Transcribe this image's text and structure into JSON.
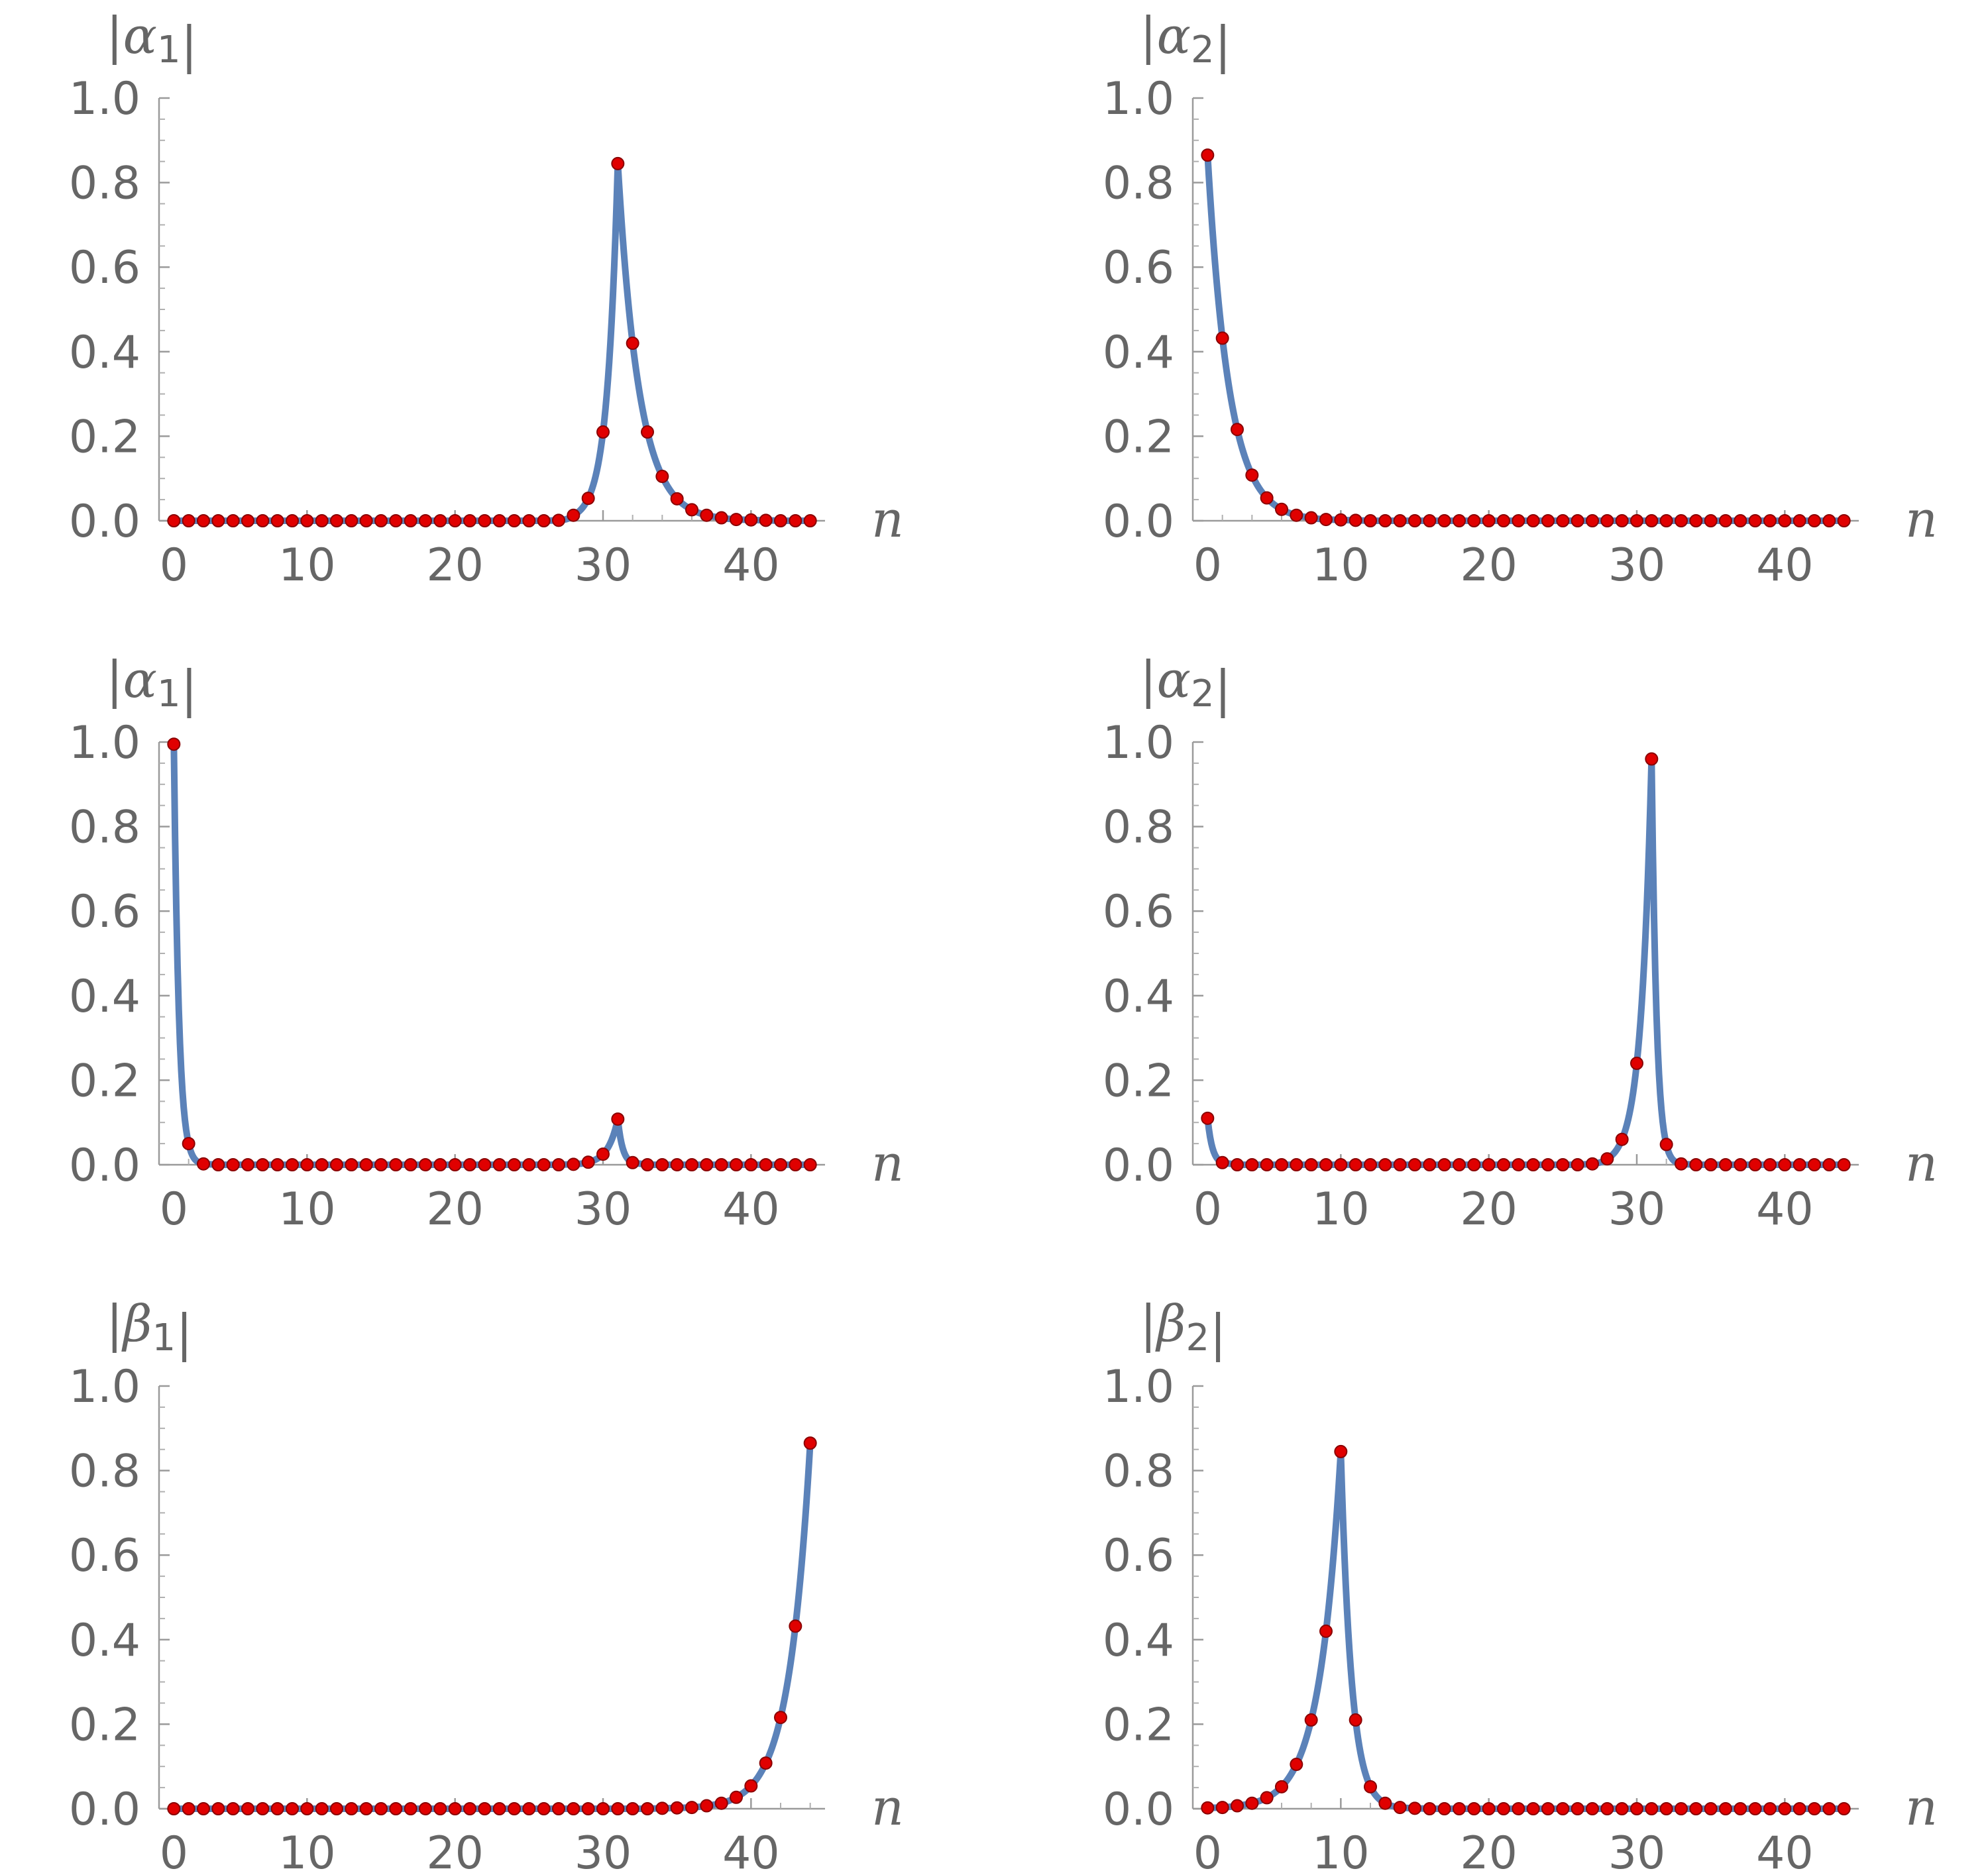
{
  "chart_data": [
    {
      "type": "line",
      "ylabel": "|α₁|",
      "xlabel": "n",
      "xlim": [
        0,
        45
      ],
      "ylim": [
        0,
        1
      ],
      "xticks": [
        10,
        20,
        30,
        40
      ],
      "yticks": [
        "0.0",
        "0.2",
        "0.4",
        "0.6",
        "0.8",
        "1.0"
      ],
      "series": [
        {
          "x": [
            1,
            2,
            3,
            4,
            5,
            6,
            7,
            8,
            9,
            10,
            11,
            12,
            13,
            14,
            15,
            16,
            17,
            18,
            19,
            20,
            21,
            22,
            23,
            24,
            25,
            26,
            27,
            28,
            29,
            30,
            31,
            32,
            33,
            34,
            35,
            36,
            37,
            38,
            39,
            40,
            41,
            42,
            43,
            44
          ],
          "values": [
            0,
            0,
            0,
            0,
            0,
            0,
            0,
            0,
            0,
            0,
            0,
            0,
            0,
            0,
            0,
            0,
            0,
            0,
            0,
            0,
            0,
            0,
            0,
            0,
            0,
            0,
            0.001,
            0.013,
            0.053,
            0.21,
            0.845,
            0.42,
            0.21,
            0.105,
            0.052,
            0.026,
            0.013,
            0.007,
            0.003,
            0.002,
            0.001,
            0,
            0,
            0
          ]
        }
      ]
    },
    {
      "type": "line",
      "ylabel": "|α₂|",
      "xlabel": "n",
      "xlim": [
        0,
        45
      ],
      "ylim": [
        0,
        1
      ],
      "xticks": [
        10,
        20,
        30,
        40
      ],
      "yticks": [
        "0.0",
        "0.2",
        "0.4",
        "0.6",
        "0.8",
        "1.0"
      ],
      "series": [
        {
          "x": [
            1,
            2,
            3,
            4,
            5,
            6,
            7,
            8,
            9,
            10,
            11,
            12,
            13,
            14,
            15,
            16,
            17,
            18,
            19,
            20,
            21,
            22,
            23,
            24,
            25,
            26,
            27,
            28,
            29,
            30,
            31,
            32,
            33,
            34,
            35,
            36,
            37,
            38,
            39,
            40,
            41,
            42,
            43,
            44
          ],
          "values": [
            0.865,
            0.432,
            0.216,
            0.108,
            0.054,
            0.027,
            0.013,
            0.007,
            0.003,
            0.002,
            0.001,
            0,
            0,
            0,
            0,
            0,
            0,
            0,
            0,
            0,
            0,
            0,
            0,
            0,
            0,
            0,
            0,
            0,
            0,
            0,
            0,
            0,
            0,
            0,
            0,
            0,
            0,
            0,
            0,
            0,
            0,
            0,
            0,
            0
          ]
        }
      ]
    },
    {
      "type": "line",
      "ylabel": "|α₁|",
      "xlabel": "n",
      "xlim": [
        0,
        45
      ],
      "ylim": [
        0,
        1
      ],
      "xticks": [
        10,
        20,
        30,
        40
      ],
      "yticks": [
        "0.0",
        "0.2",
        "0.4",
        "0.6",
        "0.8",
        "1.0"
      ],
      "series": [
        {
          "x": [
            1,
            2,
            3,
            4,
            5,
            6,
            7,
            8,
            9,
            10,
            11,
            12,
            13,
            14,
            15,
            16,
            17,
            18,
            19,
            20,
            21,
            22,
            23,
            24,
            25,
            26,
            27,
            28,
            29,
            30,
            31,
            32,
            33,
            34,
            35,
            36,
            37,
            38,
            39,
            40,
            41,
            42,
            43,
            44
          ],
          "values": [
            0.995,
            0.05,
            0.002,
            0,
            0,
            0,
            0,
            0,
            0,
            0,
            0,
            0,
            0,
            0,
            0,
            0,
            0,
            0,
            0,
            0,
            0,
            0,
            0,
            0,
            0,
            0,
            0,
            0.001,
            0.006,
            0.025,
            0.108,
            0.005,
            0,
            0,
            0,
            0,
            0,
            0,
            0,
            0,
            0,
            0,
            0,
            0
          ]
        }
      ]
    },
    {
      "type": "line",
      "ylabel": "|α₂|",
      "xlabel": "n",
      "xlim": [
        0,
        45
      ],
      "ylim": [
        0,
        1
      ],
      "xticks": [
        10,
        20,
        30,
        40
      ],
      "yticks": [
        "0.0",
        "0.2",
        "0.4",
        "0.6",
        "0.8",
        "1.0"
      ],
      "series": [
        {
          "x": [
            1,
            2,
            3,
            4,
            5,
            6,
            7,
            8,
            9,
            10,
            11,
            12,
            13,
            14,
            15,
            16,
            17,
            18,
            19,
            20,
            21,
            22,
            23,
            24,
            25,
            26,
            27,
            28,
            29,
            30,
            31,
            32,
            33,
            34,
            35,
            36,
            37,
            38,
            39,
            40,
            41,
            42,
            43,
            44
          ],
          "values": [
            0.11,
            0.005,
            0,
            0,
            0,
            0,
            0,
            0,
            0,
            0,
            0,
            0,
            0,
            0,
            0,
            0,
            0,
            0,
            0,
            0,
            0,
            0,
            0,
            0,
            0,
            0,
            0.002,
            0.014,
            0.06,
            0.24,
            0.96,
            0.048,
            0.002,
            0,
            0,
            0,
            0,
            0,
            0,
            0,
            0,
            0,
            0,
            0
          ]
        }
      ]
    },
    {
      "type": "line",
      "ylabel": "|β₁|",
      "xlabel": "n",
      "xlim": [
        0,
        45
      ],
      "ylim": [
        0,
        1
      ],
      "xticks": [
        10,
        20,
        30,
        40
      ],
      "yticks": [
        "0.0",
        "0.2",
        "0.4",
        "0.6",
        "0.8",
        "1.0"
      ],
      "series": [
        {
          "x": [
            1,
            2,
            3,
            4,
            5,
            6,
            7,
            8,
            9,
            10,
            11,
            12,
            13,
            14,
            15,
            16,
            17,
            18,
            19,
            20,
            21,
            22,
            23,
            24,
            25,
            26,
            27,
            28,
            29,
            30,
            31,
            32,
            33,
            34,
            35,
            36,
            37,
            38,
            39,
            40,
            41,
            42,
            43,
            44
          ],
          "values": [
            0,
            0,
            0,
            0,
            0,
            0,
            0,
            0,
            0,
            0,
            0,
            0,
            0,
            0,
            0,
            0,
            0,
            0,
            0,
            0,
            0,
            0,
            0,
            0,
            0,
            0,
            0,
            0,
            0,
            0,
            0,
            0,
            0,
            0.001,
            0.002,
            0.003,
            0.007,
            0.013,
            0.027,
            0.054,
            0.108,
            0.216,
            0.432,
            0.865
          ]
        }
      ]
    },
    {
      "type": "line",
      "ylabel": "|β₂|",
      "xlabel": "n",
      "xlim": [
        0,
        45
      ],
      "ylim": [
        0,
        1
      ],
      "xticks": [
        10,
        20,
        30,
        40
      ],
      "yticks": [
        "0.0",
        "0.2",
        "0.4",
        "0.6",
        "0.8",
        "1.0"
      ],
      "series": [
        {
          "x": [
            1,
            2,
            3,
            4,
            5,
            6,
            7,
            8,
            9,
            10,
            11,
            12,
            13,
            14,
            15,
            16,
            17,
            18,
            19,
            20,
            21,
            22,
            23,
            24,
            25,
            26,
            27,
            28,
            29,
            30,
            31,
            32,
            33,
            34,
            35,
            36,
            37,
            38,
            39,
            40,
            41,
            42,
            43,
            44
          ],
          "values": [
            0.002,
            0.003,
            0.007,
            0.013,
            0.026,
            0.052,
            0.105,
            0.21,
            0.42,
            0.845,
            0.21,
            0.052,
            0.013,
            0.003,
            0.001,
            0,
            0,
            0,
            0,
            0,
            0,
            0,
            0,
            0,
            0,
            0,
            0,
            0,
            0,
            0,
            0,
            0,
            0,
            0,
            0,
            0,
            0,
            0,
            0,
            0,
            0,
            0,
            0,
            0
          ]
        }
      ]
    }
  ]
}
